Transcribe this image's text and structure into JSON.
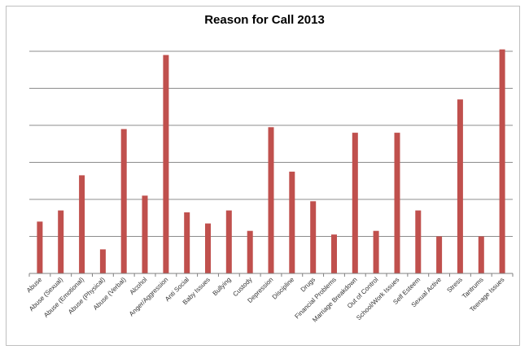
{
  "chart_data": {
    "type": "bar",
    "title": "Reason for Call 2013",
    "xlabel": "",
    "ylabel": "",
    "ylim": [
      0,
      12
    ],
    "grid": true,
    "y_tick_labels_visible": false,
    "bar_color": "#c0504d",
    "categories": [
      "Abuse",
      "Abuse (Sexual)",
      "Abuse (Emotional)",
      "Abuse (Physical)",
      "Abuse (Verbal)",
      "Alcohol",
      "Anger/Aggression",
      "Anti Social",
      "Baby Issues",
      "Bullying",
      "Custody",
      "Depression",
      "Discipline",
      "Drugs",
      "Financial Problems",
      "Marriage Breakdown",
      "Out of Control",
      "School/Work Issues",
      "Self Esteem",
      "Sexual Active",
      "Stress",
      "Tantrums",
      "Teenage Issues"
    ],
    "values": [
      2.8,
      3.4,
      5.3,
      1.3,
      7.8,
      4.2,
      11.8,
      3.3,
      2.7,
      3.4,
      2.3,
      7.9,
      5.5,
      3.9,
      2.1,
      7.6,
      2.3,
      7.6,
      3.4,
      2.0,
      9.4,
      2.0,
      12.1
    ]
  }
}
